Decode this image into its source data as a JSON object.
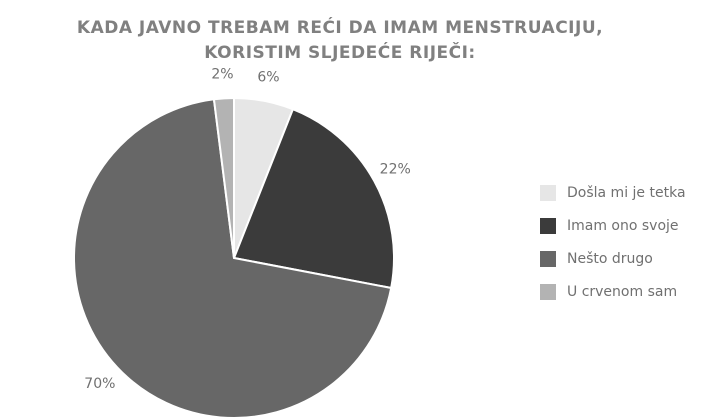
{
  "chart_data": {
    "type": "pie",
    "title": [
      "KADA JAVNO TREBAM REĆI DA IMAM MENSTRUACIJU,",
      "KORISTIM SLJEDEĆE RIJEČI:"
    ],
    "categories": [
      "Došla mi je tetka",
      "Imam ono svoje",
      "Nešto drugo",
      "U crvenom sam"
    ],
    "values": [
      6,
      22,
      70,
      2
    ],
    "value_labels": [
      "6%",
      "22%",
      "70%",
      "2%"
    ],
    "colors": [
      "#e6e6e6",
      "#3b3b3b",
      "#676767",
      "#b3b3b3"
    ],
    "legend": "right"
  }
}
